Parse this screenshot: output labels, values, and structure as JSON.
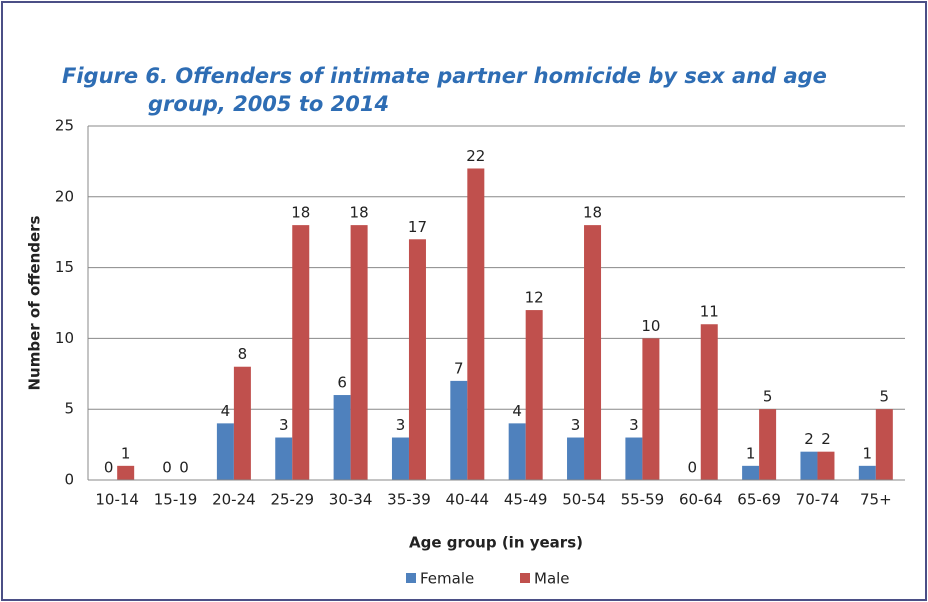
{
  "chart_data": {
    "type": "bar",
    "title": "Figure 6. Offenders of intimate partner homicide by sex and age group, 2005 to 2014",
    "x_label": "Age group (in years)",
    "y_label": "Number of offenders",
    "categories": [
      "10-14",
      "15-19",
      "20-24",
      "25-29",
      "30-34",
      "35-39",
      "40-44",
      "45-49",
      "50-54",
      "55-59",
      "60-64",
      "65-69",
      "70-74",
      "75+"
    ],
    "series": [
      {
        "name": "Female",
        "color": "#4f81bd",
        "values": [
          0,
          0,
          4,
          3,
          6,
          3,
          7,
          4,
          3,
          3,
          0,
          1,
          2,
          1
        ]
      },
      {
        "name": "Male",
        "color": "#c0504d",
        "values": [
          1,
          0,
          8,
          18,
          18,
          17,
          22,
          12,
          18,
          10,
          11,
          5,
          2,
          5
        ]
      }
    ],
    "ylim": [
      0,
      25
    ],
    "yticks": [
      0,
      5,
      10,
      15,
      20,
      25
    ],
    "grid": true,
    "legend": "bottom"
  }
}
